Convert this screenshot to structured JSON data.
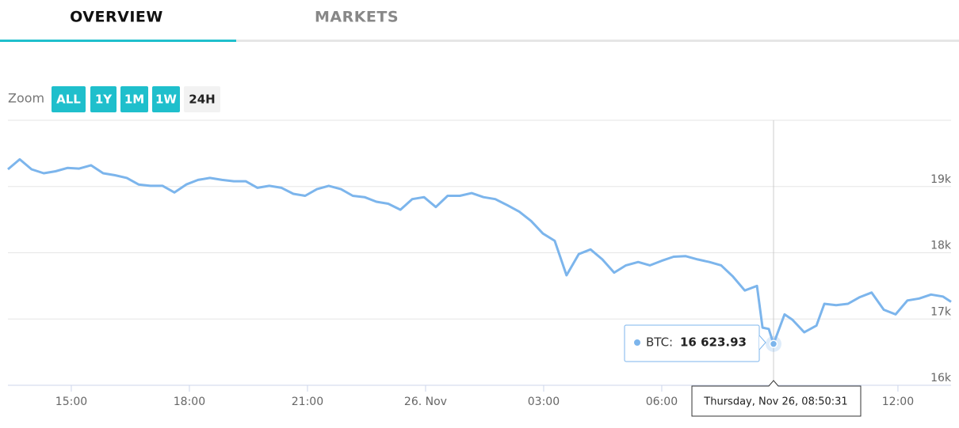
{
  "tabs": [
    "OVERVIEW",
    "MARKETS"
  ],
  "zoom": {
    "label": "Zoom",
    "buttons": [
      "ALL",
      "1Y",
      "1M",
      "1W",
      "24H"
    ]
  },
  "chart_data": {
    "type": "line",
    "color": "#7cb5ec",
    "x": [
      13.39,
      13.69,
      13.99,
      14.3,
      14.6,
      14.9,
      15.2,
      15.5,
      15.81,
      16.11,
      16.41,
      16.71,
      17.01,
      17.32,
      17.62,
      17.92,
      18.22,
      18.52,
      18.83,
      19.13,
      19.43,
      19.73,
      20.03,
      20.34,
      20.64,
      20.94,
      21.24,
      21.54,
      21.85,
      22.15,
      22.45,
      22.75,
      23.05,
      23.36,
      23.66,
      23.96,
      24.26,
      24.56,
      24.87,
      25.17,
      25.47,
      25.77,
      26.07,
      26.38,
      26.68,
      26.98,
      27.28,
      27.58,
      27.89,
      28.19,
      28.49,
      28.79,
      29.09,
      29.4,
      29.7,
      30.0,
      30.3,
      30.6,
      30.91,
      31.21,
      31.51,
      31.81,
      32.11,
      32.42,
      32.56,
      32.72,
      32.84,
      33.12,
      33.32,
      33.62,
      33.93,
      34.13,
      34.43,
      34.73,
      35.03,
      35.33,
      35.64,
      35.94,
      36.24,
      36.54,
      36.84,
      37.14,
      37.35
    ],
    "values": [
      19260,
      19410,
      19260,
      19200,
      19230,
      19280,
      19270,
      19320,
      19200,
      19170,
      19130,
      19030,
      19010,
      19010,
      18910,
      19030,
      19100,
      19130,
      19100,
      19080,
      19080,
      18980,
      19010,
      18980,
      18890,
      18860,
      18960,
      19010,
      18960,
      18860,
      18840,
      18770,
      18740,
      18650,
      18810,
      18840,
      18690,
      18860,
      18860,
      18900,
      18840,
      18810,
      18720,
      18620,
      18480,
      18290,
      18180,
      17660,
      17980,
      18050,
      17900,
      17700,
      17810,
      17860,
      17810,
      17880,
      17940,
      17950,
      17900,
      17860,
      17810,
      17640,
      17430,
      17500,
      16870,
      16850,
      16623.93,
      17070,
      16990,
      16800,
      16900,
      17230,
      17210,
      17230,
      17330,
      17400,
      17140,
      17070,
      17280,
      17310,
      17370,
      17340,
      17260
    ],
    "xlim": [
      13.39,
      37.35
    ],
    "xticks": [
      {
        "value": 15,
        "label": "15:00"
      },
      {
        "value": 18,
        "label": "18:00"
      },
      {
        "value": 21,
        "label": "21:00"
      },
      {
        "value": 24,
        "label": "26. Nov"
      },
      {
        "value": 27,
        "label": "03:00"
      },
      {
        "value": 30,
        "label": "06:00"
      },
      {
        "value": 36,
        "label": "12:00"
      }
    ],
    "ylim": [
      16000,
      20000
    ],
    "yticks": [
      {
        "value": 16000,
        "label": "16k"
      },
      {
        "value": 17000,
        "label": "17k"
      },
      {
        "value": 18000,
        "label": "18k"
      },
      {
        "value": 19000,
        "label": "19k"
      }
    ],
    "grid": true,
    "tooltip": {
      "label": "BTC:",
      "value_label": "16 623.93",
      "date": "Thursday, Nov 26, 08:50:31"
    }
  }
}
